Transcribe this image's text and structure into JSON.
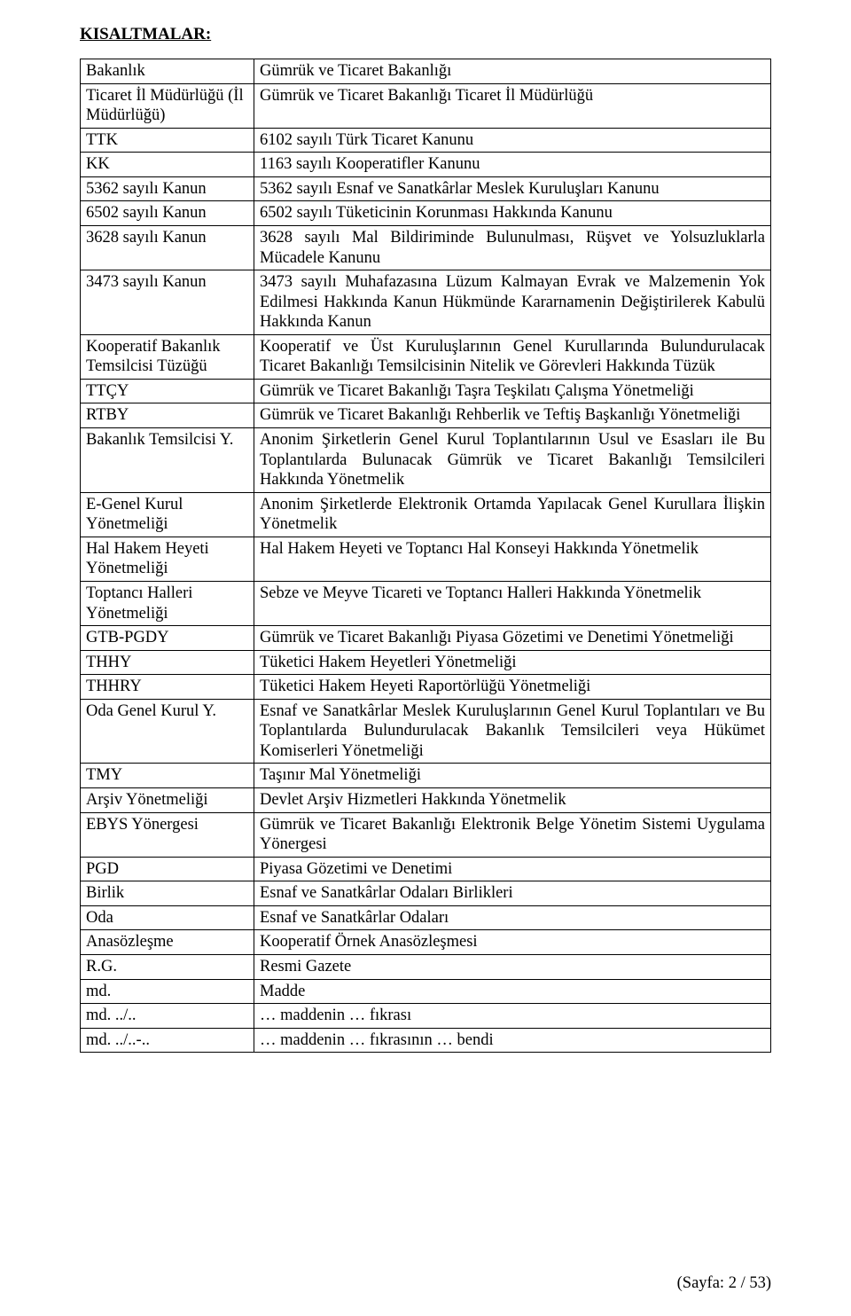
{
  "title": "KISALTMALAR:",
  "rows": [
    {
      "key": "Bakanlık",
      "val": "Gümrük ve Ticaret Bakanlığı",
      "justify": false
    },
    {
      "key": "Ticaret İl Müdürlüğü (İl Müdürlüğü)",
      "val": "Gümrük ve Ticaret Bakanlığı Ticaret İl Müdürlüğü",
      "justify": false
    },
    {
      "key": "TTK",
      "val": "6102 sayılı Türk Ticaret Kanunu",
      "justify": false
    },
    {
      "key": "KK",
      "val": "1163 sayılı Kooperatifler Kanunu",
      "justify": false
    },
    {
      "key": "5362 sayılı Kanun",
      "val": "5362 sayılı Esnaf ve Sanatkârlar Meslek Kuruluşları Kanunu",
      "justify": false
    },
    {
      "key": "6502 sayılı Kanun",
      "val": "6502 sayılı Tüketicinin Korunması Hakkında Kanunu",
      "justify": false
    },
    {
      "key": "3628 sayılı Kanun",
      "val": "3628 sayılı Mal Bildiriminde Bulunulması, Rüşvet ve Yolsuzluklarla Mücadele Kanunu",
      "justify": true
    },
    {
      "key": "3473 sayılı Kanun",
      "val": "3473 sayılı Muhafazasına Lüzum Kalmayan Evrak ve Malzemenin Yok Edilmesi Hakkında Kanun Hükmünde Kararnamenin Değiştirilerek Kabulü Hakkında Kanun",
      "justify": true
    },
    {
      "key": "Kooperatif Bakanlık Temsilcisi Tüzüğü",
      "val": "Kooperatif ve Üst Kuruluşlarının Genel Kurullarında Bulundurulacak Ticaret Bakanlığı Temsilcisinin Nitelik ve Görevleri Hakkında Tüzük",
      "justify": true
    },
    {
      "key": "TTÇY",
      "val": "Gümrük ve Ticaret Bakanlığı Taşra Teşkilatı Çalışma Yönetmeliği",
      "justify": false
    },
    {
      "key": "RTBY",
      "val": "Gümrük ve Ticaret Bakanlığı Rehberlik ve Teftiş Başkanlığı Yönetmeliği",
      "justify": true
    },
    {
      "key": "Bakanlık Temsilcisi Y.",
      "val": "Anonim Şirketlerin Genel Kurul Toplantılarının Usul ve Esasları ile Bu Toplantılarda Bulunacak Gümrük ve Ticaret Bakanlığı Temsilcileri Hakkında Yönetmelik",
      "justify": true
    },
    {
      "key": "E-Genel Kurul Yönetmeliği",
      "val": "Anonim Şirketlerde Elektronik Ortamda Yapılacak Genel Kurullara İlişkin Yönetmelik",
      "justify": true
    },
    {
      "key": "Hal Hakem Heyeti Yönetmeliği",
      "val": "Hal Hakem Heyeti ve Toptancı Hal Konseyi Hakkında Yönetmelik",
      "justify": false
    },
    {
      "key": "Toptancı Halleri Yönetmeliği",
      "val": "Sebze ve Meyve Ticareti ve Toptancı Halleri Hakkında Yönetmelik",
      "justify": false
    },
    {
      "key": "GTB-PGDY",
      "val": "Gümrük ve Ticaret Bakanlığı Piyasa Gözetimi ve Denetimi Yönetmeliği",
      "justify": true
    },
    {
      "key": "THHY",
      "val": "Tüketici Hakem Heyetleri Yönetmeliği",
      "justify": false
    },
    {
      "key": "THHRY",
      "val": "Tüketici Hakem Heyeti Raportörlüğü Yönetmeliği",
      "justify": false
    },
    {
      "key": "Oda Genel Kurul Y.",
      "val": "Esnaf ve Sanatkârlar Meslek Kuruluşlarının Genel Kurul Toplantıları ve Bu Toplantılarda Bulundurulacak Bakanlık Temsilcileri veya Hükümet Komiserleri Yönetmeliği",
      "justify": true
    },
    {
      "key": "TMY",
      "val": "Taşınır Mal Yönetmeliği",
      "justify": false
    },
    {
      "key": "Arşiv Yönetmeliği",
      "val": "Devlet Arşiv Hizmetleri Hakkında Yönetmelik",
      "justify": false
    },
    {
      "key": "EBYS Yönergesi",
      "val": "Gümrük ve Ticaret Bakanlığı Elektronik Belge Yönetim Sistemi Uygulama Yönergesi",
      "justify": true
    },
    {
      "key": "PGD",
      "val": "Piyasa Gözetimi ve Denetimi",
      "justify": false
    },
    {
      "key": "Birlik",
      "val": "Esnaf ve Sanatkârlar Odaları Birlikleri",
      "justify": false
    },
    {
      "key": "Oda",
      "val": "Esnaf ve Sanatkârlar Odaları",
      "justify": false
    },
    {
      "key": "Anasözleşme",
      "val": "Kooperatif Örnek Anasözleşmesi",
      "justify": false
    },
    {
      "key": "R.G.",
      "val": "Resmi Gazete",
      "justify": false
    },
    {
      "key": "md.",
      "val": "Madde",
      "justify": false
    },
    {
      "key": "md. ../..",
      "val": "… maddenin … fıkrası",
      "justify": false
    },
    {
      "key": "md. ../..-..",
      "val": "… maddenin … fıkrasının … bendi",
      "justify": false
    }
  ],
  "footer": "(Sayfa: 2 / 53)"
}
